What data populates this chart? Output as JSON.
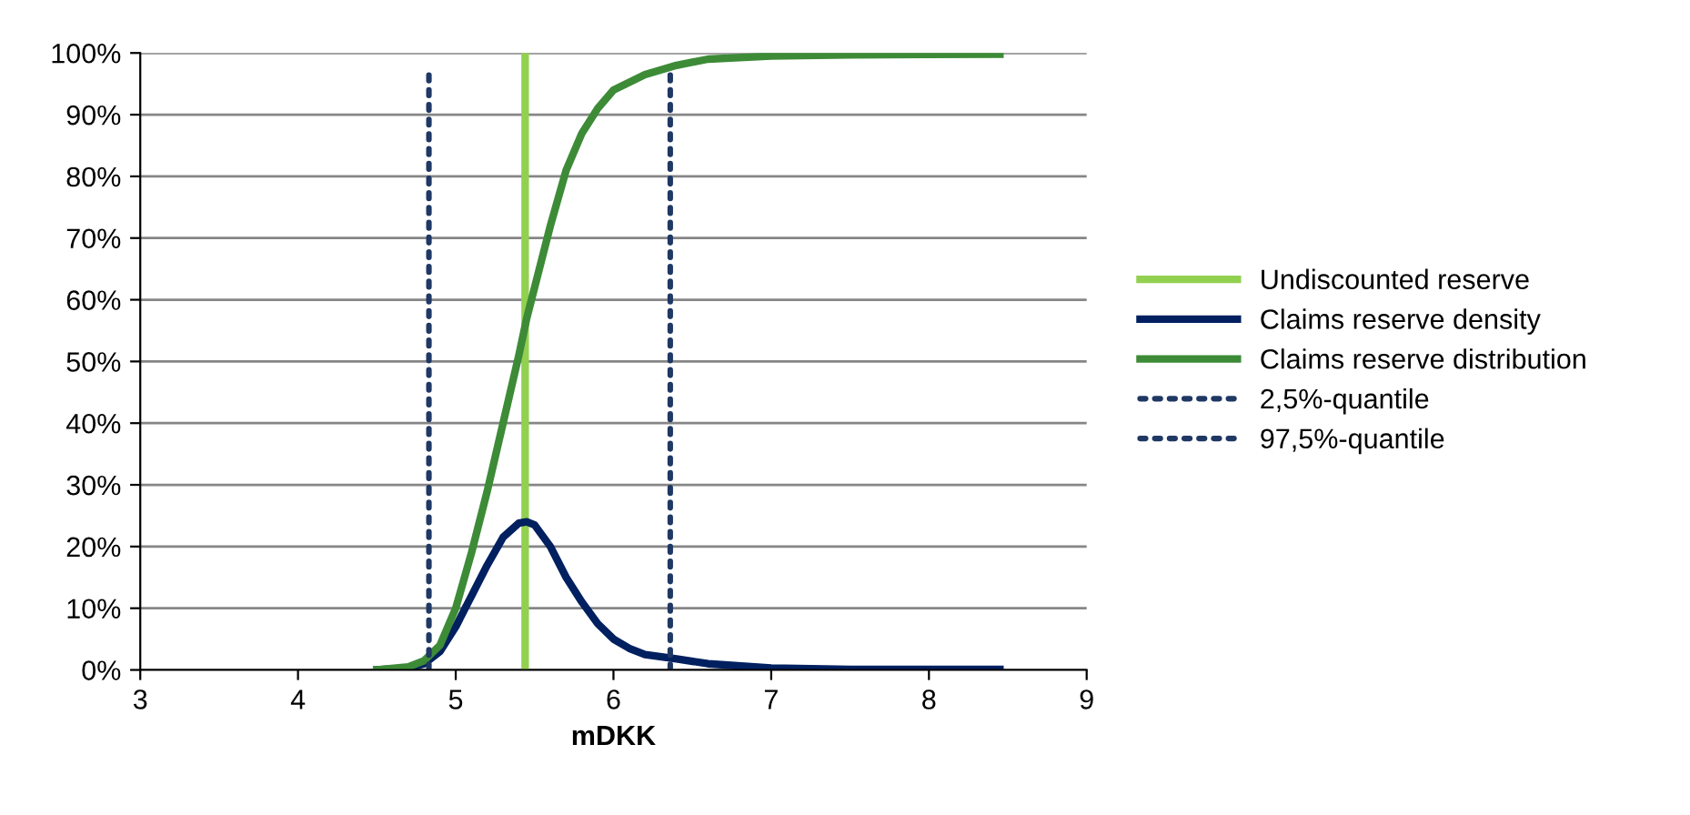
{
  "chart_data": {
    "type": "line",
    "xlabel": "mDKK",
    "xlim": [
      3,
      9
    ],
    "xticks": [
      3,
      4,
      5,
      6,
      7,
      8,
      9
    ],
    "ylim": [
      0,
      100
    ],
    "yticks": [
      {
        "value": 0,
        "label": "0%"
      },
      {
        "value": 10,
        "label": "10%"
      },
      {
        "value": 20,
        "label": "20%"
      },
      {
        "value": 30,
        "label": "30%"
      },
      {
        "value": 40,
        "label": "40%"
      },
      {
        "value": 50,
        "label": "50%"
      },
      {
        "value": 60,
        "label": "60%"
      },
      {
        "value": 70,
        "label": "70%"
      },
      {
        "value": 80,
        "label": "80%"
      },
      {
        "value": 90,
        "label": "90%"
      },
      {
        "value": 100,
        "label": "100%"
      }
    ],
    "grid": "y",
    "legend": "right",
    "marker": "none",
    "series": [
      {
        "name": "Undiscounted reserve",
        "color": "#92d050",
        "line_style": "solid",
        "x": [
          5.44,
          5.44
        ],
        "values": [
          0,
          100
        ]
      },
      {
        "name": "Claims reserve density",
        "color": "#002060",
        "line_style": "solid",
        "x": [
          4.5,
          4.7,
          4.8,
          4.9,
          5.0,
          5.1,
          5.2,
          5.3,
          5.4,
          5.45,
          5.5,
          5.6,
          5.7,
          5.8,
          5.9,
          6.0,
          6.1,
          6.2,
          6.4,
          6.6,
          7.0,
          7.5,
          8.45
        ],
        "values": [
          0,
          0.3,
          1,
          3,
          7,
          12,
          17,
          21.5,
          23.8,
          24,
          23.5,
          20,
          15,
          11,
          7.5,
          5,
          3.5,
          2.5,
          1.8,
          1,
          0.3,
          0.1,
          0.1
        ]
      },
      {
        "name": "Claims reserve distribution",
        "color": "#3d8b37",
        "line_style": "solid",
        "x": [
          4.5,
          4.7,
          4.8,
          4.9,
          5.0,
          5.1,
          5.2,
          5.3,
          5.4,
          5.45,
          5.5,
          5.6,
          5.7,
          5.8,
          5.9,
          6.0,
          6.2,
          6.4,
          6.6,
          7.0,
          7.5,
          8.45
        ],
        "values": [
          0,
          0.5,
          1.5,
          4,
          10,
          19,
          29,
          40,
          51,
          57,
          62,
          72,
          81,
          87,
          91,
          94,
          96.5,
          98,
          99,
          99.5,
          99.7,
          99.8
        ]
      },
      {
        "name": "2,5%-quantile",
        "color": "#1f3864",
        "line_style": "dotted",
        "x": [
          4.83,
          4.83
        ],
        "values": [
          0,
          97.5
        ]
      },
      {
        "name": "97,5%-quantile",
        "color": "#1f3864",
        "line_style": "dotted",
        "x": [
          6.36,
          6.36
        ],
        "values": [
          0,
          97.5
        ]
      }
    ]
  }
}
